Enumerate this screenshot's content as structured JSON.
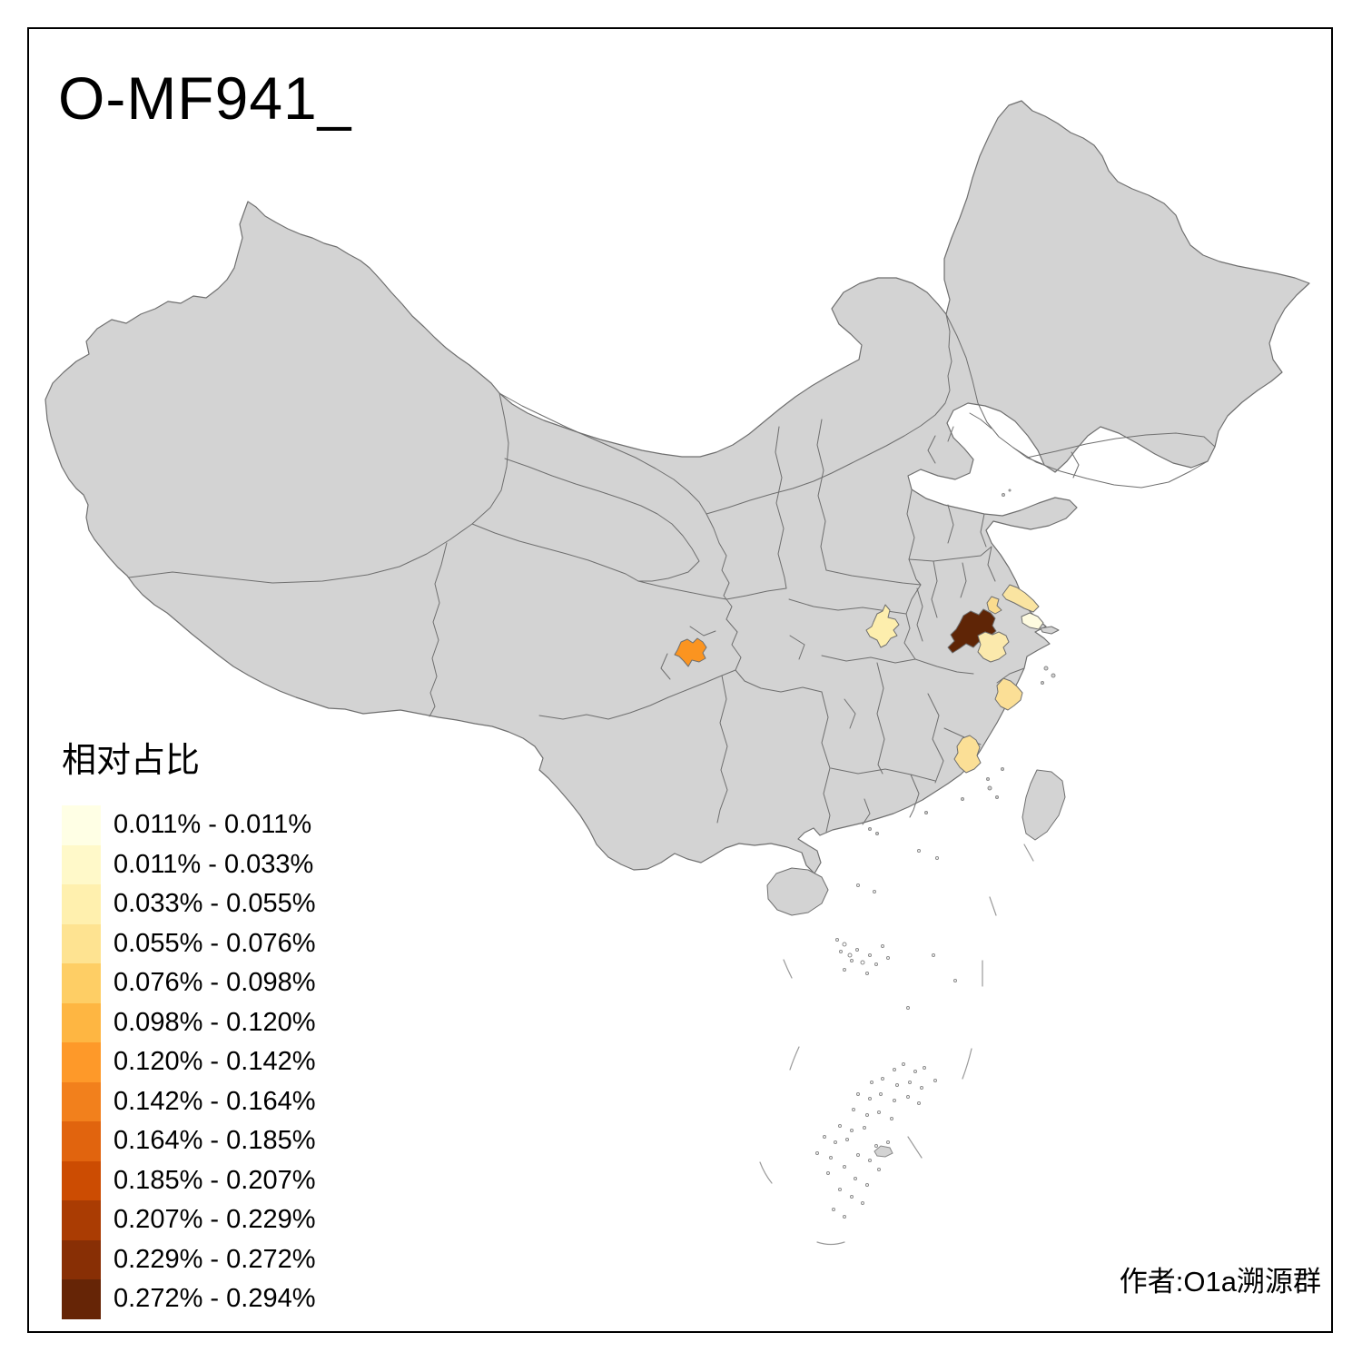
{
  "title": "O-MF941_",
  "attribution": "作者:O1a溯源群",
  "legend": {
    "title": "相对占比",
    "classes": [
      {
        "color": "#FFFFE5",
        "label": "0.011% - 0.011%"
      },
      {
        "color": "#FFF9C9",
        "label": "0.011% - 0.033%"
      },
      {
        "color": "#FFF0AE",
        "label": "0.033% - 0.055%"
      },
      {
        "color": "#FEE391",
        "label": "0.055% - 0.076%"
      },
      {
        "color": "#FECE65",
        "label": "0.076% - 0.098%"
      },
      {
        "color": "#FEB642",
        "label": "0.098% - 0.120%"
      },
      {
        "color": "#FE9929",
        "label": "0.120% - 0.142%"
      },
      {
        "color": "#F2801C",
        "label": "0.142% - 0.164%"
      },
      {
        "color": "#E1640E",
        "label": "0.164% - 0.185%"
      },
      {
        "color": "#CC4C02",
        "label": "0.185% - 0.207%"
      },
      {
        "color": "#AA3C03",
        "label": "0.207% - 0.229%"
      },
      {
        "color": "#882F05",
        "label": "0.229% - 0.272%"
      },
      {
        "color": "#662506",
        "label": "0.272% - 0.294%"
      }
    ]
  },
  "map": {
    "background": "#FFFFFF",
    "land_color": "#D3D3D3",
    "border_color": "#6F6F6F",
    "frame_color": "#000000",
    "regions": [
      {
        "id": "r1",
        "fill": "#FB9420",
        "value_range": "0.120% - 0.142%",
        "location_hint": "Sichuan basin (Chengdu area)"
      },
      {
        "id": "r2",
        "fill": "#FDEEAD",
        "value_range": "0.033% - 0.055%",
        "location_hint": "middle Yangtze (Wuhan area)"
      },
      {
        "id": "r3",
        "fill": "#5F2506",
        "value_range": "0.272% - 0.294%",
        "location_hint": "lower Yangtze, dark highest-value prefecture"
      },
      {
        "id": "r4",
        "fill": "#FAE4A1",
        "value_range": "0.055% - 0.076%",
        "location_hint": "coastal Jiangsu diagonal strip"
      },
      {
        "id": "r5",
        "fill": "#FBDC8E",
        "value_range": "0.055% - 0.076%",
        "location_hint": "small prefecture north of dark region"
      },
      {
        "id": "r6",
        "fill": "#FEFBE0",
        "value_range": "0.011% - 0.033%",
        "location_hint": "Yangtze mouth / Shanghai area, palest"
      },
      {
        "id": "r7",
        "fill": "#FBE9AC",
        "value_range": "0.033% - 0.055%",
        "location_hint": "south of dark region"
      },
      {
        "id": "r8",
        "fill": "#FBDF96",
        "value_range": "0.055% - 0.076%",
        "location_hint": "Zhejiang coast"
      },
      {
        "id": "r9",
        "fill": "#FBDF96",
        "value_range": "0.055% - 0.076%",
        "location_hint": "Fujian coast"
      }
    ]
  },
  "chart_data": {
    "type": "choropleth-map",
    "title": "O-MF941_",
    "legend_title": "相对占比",
    "legend_position": "bottom-left",
    "value_unit": "%",
    "value_min": 0.011,
    "value_max": 0.294,
    "class_breaks": [
      0.011,
      0.011,
      0.033,
      0.055,
      0.076,
      0.098,
      0.12,
      0.142,
      0.164,
      0.185,
      0.207,
      0.229,
      0.272,
      0.294
    ],
    "colored_region_count": 9,
    "uncolored_fill": "#D3D3D3"
  }
}
